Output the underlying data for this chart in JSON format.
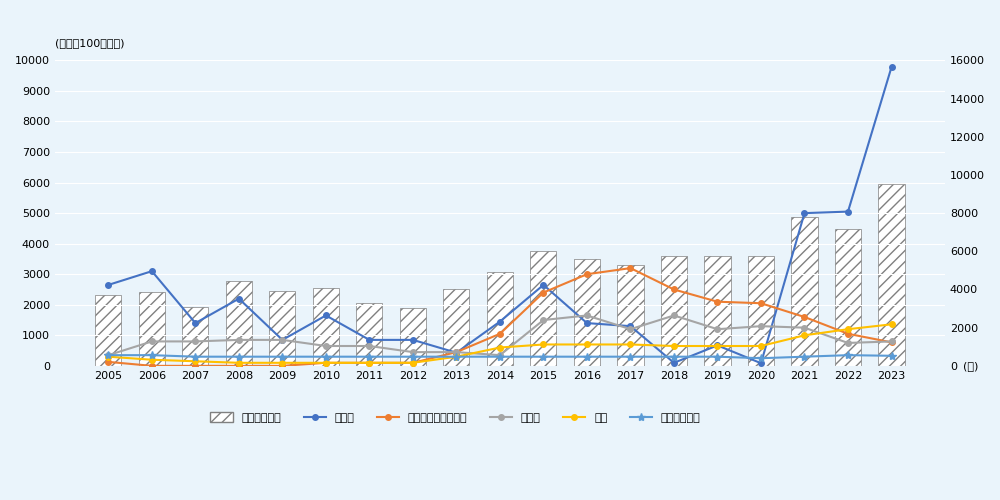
{
  "years": [
    2005,
    2006,
    2007,
    2008,
    2009,
    2010,
    2011,
    2012,
    2013,
    2014,
    2015,
    2016,
    2017,
    2018,
    2019,
    2020,
    2021,
    2022,
    2023
  ],
  "total_right": [
    3700,
    3850,
    3100,
    4450,
    3900,
    4100,
    3300,
    3050,
    4000,
    4900,
    6000,
    5600,
    5300,
    5750,
    5750,
    5750,
    7800,
    7150,
    9500
  ],
  "semiconductor": [
    2650,
    3100,
    1400,
    2200,
    850,
    1650,
    850,
    850,
    430,
    1450,
    2650,
    1400,
    1300,
    100,
    670,
    87,
    5000,
    5050,
    9780
  ],
  "renewable_energy": [
    130,
    0,
    0,
    0,
    0,
    100,
    100,
    100,
    450,
    1050,
    2400,
    3000,
    3200,
    2500,
    2100,
    2050,
    1600,
    1050,
    770
  ],
  "real_estate": [
    350,
    800,
    800,
    850,
    850,
    650,
    650,
    450,
    450,
    350,
    1500,
    1650,
    1200,
    1650,
    1200,
    1300,
    1250,
    750,
    800
  ],
  "telecom": [
    300,
    200,
    150,
    100,
    100,
    100,
    100,
    100,
    300,
    600,
    700,
    700,
    700,
    650,
    650,
    650,
    1000,
    1200,
    1360
  ],
  "financial_services": [
    350,
    350,
    300,
    300,
    300,
    300,
    300,
    300,
    300,
    300,
    300,
    300,
    300,
    300,
    300,
    250,
    300,
    350,
    330
  ],
  "bar_edge_color": "#808080",
  "semiconductor_color": "#4472C4",
  "renewable_color": "#ED7D31",
  "real_estate_color": "#A5A5A5",
  "telecom_color": "#FFC000",
  "financial_color": "#5B9BD5",
  "left_ylim": [
    0,
    10000
  ],
  "right_ylim": [
    0,
    16000
  ],
  "left_yticks": [
    0,
    1000,
    2000,
    3000,
    4000,
    5000,
    6000,
    7000,
    8000,
    9000,
    10000
  ],
  "right_yticks": [
    0,
    2000,
    4000,
    6000,
    8000,
    10000,
    12000,
    14000,
    16000
  ],
  "unit_label": "(単位：100万ドル)",
  "year_label": "(年)",
  "legend_total": "合計（右軸）",
  "legend_semiconductor": "半導体",
  "legend_renewable": "再生可能エネルギー",
  "legend_real_estate": "不動産",
  "legend_telecom": "通信",
  "legend_financial": "金融サービス",
  "bg_color": "#EAF4FB",
  "plot_bg_color": "#EAF4FB"
}
